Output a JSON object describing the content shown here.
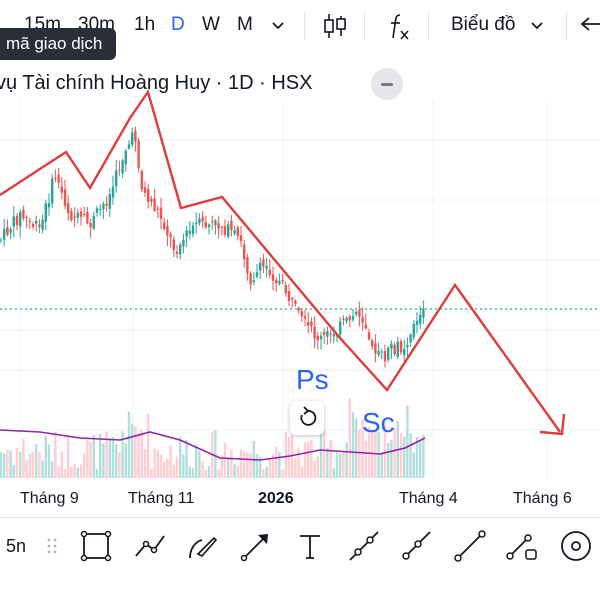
{
  "toolbar": {
    "intervals": [
      "15m",
      "30m",
      "1h",
      "D",
      "W",
      "M"
    ],
    "active_interval": "D",
    "chart_type_label": "Biểu đồ",
    "tooltip": "mã giao dịch"
  },
  "symbol": {
    "title": "vụ Tài chính Hoàng Huy · 1D · HSX"
  },
  "annotations": {
    "ps": "Ps",
    "sc": "Sc"
  },
  "time_axis": {
    "labels": [
      "Tháng 9",
      "Tháng 11",
      "2026",
      "Tháng 4",
      "Tháng 6"
    ]
  },
  "drawing_toolbar": {
    "interval": "5n",
    "tools": [
      "rectangle-icon",
      "path-icon",
      "brush-icon",
      "arrow-icon",
      "text-icon",
      "trend-line-icon",
      "ray-icon",
      "extended-line-icon",
      "info-line-icon",
      "measure-icon"
    ]
  },
  "colors": {
    "bull": "#26a69a",
    "bear": "#ef5350",
    "drawing": "#e03c3c",
    "volume_ma": "#8e24aa",
    "price_line": "#26a69a",
    "annotation_text": "#2962ff",
    "accent": "#2962ff"
  },
  "chart_data": {
    "type": "candlestick",
    "x_labels": [
      "Tháng 9",
      "Tháng 11",
      "2026",
      "Tháng 4",
      "Tháng 6"
    ],
    "drawn_pattern": "zigzag line with projected arrow downward",
    "annotations": [
      "Ps",
      "Sc"
    ],
    "volume_ma": true,
    "horizontal_price_line": "dotted, current price"
  }
}
